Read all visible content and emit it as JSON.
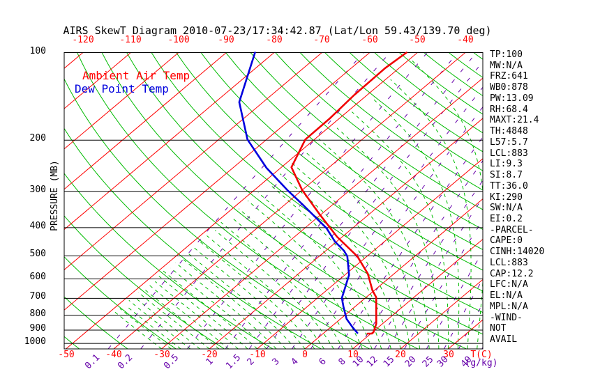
{
  "title": "AIRS SkewT Diagram 2010-07-23/17:34:42.87 (Lat/Lon 59.43/139.70 deg)",
  "legend": {
    "temp_label": "Ambient Air Temp",
    "dewpoint_label": "Dew Point Temp"
  },
  "axes": {
    "pressure_label": "PRESSURE (MB)",
    "pressure_ticks": [
      100,
      200,
      300,
      400,
      500,
      600,
      700,
      800,
      900,
      1000
    ],
    "temp_unit_label": "T(C)",
    "temp_ticks_bottom": [
      -50,
      -40,
      -30,
      -20,
      -10,
      0,
      10,
      20,
      30
    ],
    "temp_ticks_top": [
      -120,
      -110,
      -100,
      -90,
      -80,
      -70,
      -60,
      -50,
      -40
    ],
    "mixing_ratio_ticks": [
      0.1,
      0.2,
      0.5,
      1,
      1.5,
      2,
      3,
      4,
      6,
      8,
      10,
      12,
      15,
      20,
      25,
      30,
      40
    ],
    "mixing_ratio_unit_label": "(g/kg)"
  },
  "stats": [
    "TP:100",
    "MW:N/A",
    "FRZ:641",
    "WB0:878",
    "PW:13.09",
    "RH:68.4",
    "MAXT:21.4",
    "TH:4848",
    "L57:5.7",
    "LCL:883",
    "LI:9.3",
    "SI:8.7",
    "TT:36.0",
    "KI:290",
    "SW:N/A",
    "EI:0.2",
    "-PARCEL-",
    "CAPE:0",
    "CINH:14020",
    "LCL:883",
    "CAP:12.2",
    "LFC:N/A",
    "EL:N/A",
    "MPL:N/A",
    "-WIND-",
    "NOT",
    "AVAIL"
  ],
  "colors": {
    "temp_profile": "#f00000",
    "dewpoint_profile": "#0000dd",
    "isotherm": "#ff0000",
    "adiabat": "#00bb00",
    "mixing_ratio": "#6600aa",
    "axis": "#000000"
  },
  "chart_data": {
    "type": "line",
    "title": "AIRS SkewT Diagram 2010-07-23/17:34:42.87 (Lat/Lon 59.43/139.70 deg)",
    "pressure_axis": {
      "unit": "MB",
      "min": 100,
      "max": 1045,
      "scale": "log"
    },
    "temp_axis": {
      "unit": "C",
      "bottom_min": -50,
      "bottom_max": 30,
      "top_min": -120,
      "top_max": -40
    },
    "grid": {
      "isotherm_step_c": 10,
      "dry_adiabat_step_k": 10,
      "moist_adiabat_step_c": 2,
      "mixing_ratio_lines_g_kg": [
        0.1,
        0.2,
        0.5,
        1,
        1.5,
        2,
        3,
        4,
        6,
        8,
        10,
        12,
        15,
        20,
        25,
        30,
        40
      ]
    },
    "temperature_profile_p_t": [
      [
        100,
        -52.3
      ],
      [
        113,
        -52.9
      ],
      [
        140,
        -52.7
      ],
      [
        168,
        -52.0
      ],
      [
        199,
        -51.9
      ],
      [
        248,
        -47.9
      ],
      [
        297,
        -40.0
      ],
      [
        358,
        -30.6
      ],
      [
        430,
        -21.1
      ],
      [
        502,
        -12.0
      ],
      [
        576,
        -5.5
      ],
      [
        657,
        -0.4
      ],
      [
        694,
        2.1
      ],
      [
        856,
        8.7
      ],
      [
        915,
        10.2
      ],
      [
        925,
        10.2
      ],
      [
        925,
        9.3
      ]
    ],
    "dewpoint_profile_p_t": [
      [
        100,
        -84.0
      ],
      [
        148,
        -75.0
      ],
      [
        199,
        -64.0
      ],
      [
        249,
        -53.0
      ],
      [
        297,
        -43.1
      ],
      [
        332,
        -36.5
      ],
      [
        402,
        -25.4
      ],
      [
        447,
        -20.3
      ],
      [
        480,
        -16.2
      ],
      [
        502,
        -14.1
      ],
      [
        582,
        -9.1
      ],
      [
        698,
        -4.9
      ],
      [
        746,
        -2.5
      ],
      [
        797,
        0.0
      ],
      [
        824,
        1.3
      ],
      [
        880,
        4.6
      ],
      [
        920,
        7.0
      ]
    ]
  }
}
